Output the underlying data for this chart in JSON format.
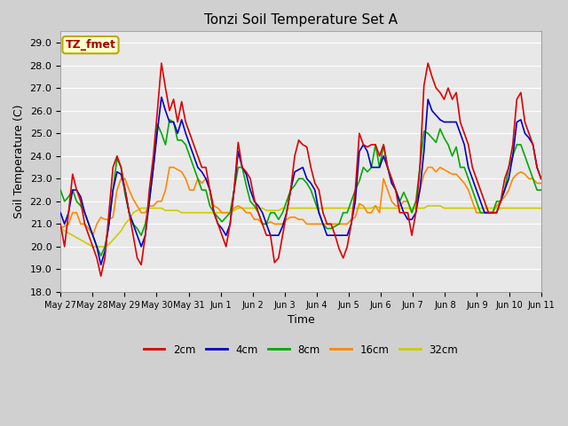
{
  "title": "Tonzi Soil Temperature Set A",
  "xlabel": "Time",
  "ylabel": "Soil Temperature (C)",
  "ylim": [
    18.0,
    29.5
  ],
  "yticks": [
    18.0,
    19.0,
    20.0,
    21.0,
    22.0,
    23.0,
    24.0,
    25.0,
    26.0,
    27.0,
    28.0,
    29.0
  ],
  "plot_bg": "#e8e8e8",
  "grid_color": "white",
  "label_box_text": "TZ_fmet",
  "label_box_bg": "#ffffcc",
  "label_box_edge": "#bbaa00",
  "label_box_text_color": "#aa0000",
  "series": {
    "2cm": {
      "color": "#dd0000",
      "lw": 1.2
    },
    "4cm": {
      "color": "#0000cc",
      "lw": 1.2
    },
    "8cm": {
      "color": "#00aa00",
      "lw": 1.2
    },
    "16cm": {
      "color": "#ff8800",
      "lw": 1.2
    },
    "32cm": {
      "color": "#cccc00",
      "lw": 1.2
    }
  },
  "x_tick_labels": [
    "May 27",
    "May 28",
    "May 29",
    "May 30",
    "May 31",
    "Jun 1",
    "Jun 2",
    "Jun 3",
    "Jun 4",
    "Jun 5",
    "Jun 6",
    "Jun 7",
    "Jun 8",
    "Jun 9",
    "Jun 10",
    "Jun 11"
  ],
  "y_2cm": [
    21.0,
    20.0,
    21.5,
    23.2,
    22.5,
    22.0,
    21.0,
    20.5,
    20.0,
    19.5,
    18.7,
    19.5,
    21.5,
    23.5,
    24.0,
    23.5,
    22.5,
    21.5,
    20.5,
    19.5,
    19.2,
    20.5,
    22.5,
    24.0,
    26.0,
    28.1,
    27.0,
    26.0,
    26.5,
    25.5,
    26.4,
    25.5,
    25.0,
    24.5,
    24.0,
    23.5,
    23.5,
    22.5,
    21.5,
    21.0,
    20.5,
    20.0,
    21.0,
    22.5,
    24.6,
    23.5,
    23.3,
    23.0,
    22.1,
    21.5,
    21.0,
    20.5,
    20.5,
    19.3,
    19.5,
    20.5,
    21.5,
    22.5,
    24.0,
    24.7,
    24.5,
    24.4,
    23.5,
    22.8,
    22.5,
    21.5,
    21.0,
    21.0,
    20.5,
    19.9,
    19.5,
    20.0,
    21.0,
    22.5,
    25.0,
    24.5,
    24.4,
    24.5,
    24.5,
    24.0,
    24.5,
    23.5,
    23.0,
    22.5,
    21.5,
    21.5,
    21.5,
    20.5,
    21.5,
    23.5,
    27.1,
    28.1,
    27.5,
    27.0,
    26.8,
    26.5,
    27.0,
    26.5,
    26.8,
    25.5,
    25.0,
    24.5,
    23.5,
    23.0,
    22.5,
    22.0,
    21.5,
    21.5,
    21.5,
    22.0,
    23.0,
    23.5,
    24.5,
    26.5,
    26.8,
    25.5,
    25.0,
    24.5,
    23.5,
    23.0
  ],
  "y_4cm": [
    21.5,
    21.0,
    21.5,
    22.5,
    22.5,
    22.2,
    21.5,
    21.0,
    20.5,
    20.0,
    19.2,
    19.8,
    21.0,
    22.5,
    23.3,
    23.2,
    22.5,
    21.5,
    21.0,
    20.5,
    20.0,
    20.5,
    22.0,
    23.5,
    25.1,
    26.6,
    26.0,
    25.5,
    25.5,
    25.0,
    25.6,
    25.0,
    24.5,
    24.0,
    23.5,
    23.3,
    23.0,
    22.5,
    21.5,
    21.0,
    20.8,
    20.5,
    21.0,
    22.5,
    24.2,
    23.5,
    23.2,
    22.5,
    22.0,
    21.8,
    21.5,
    21.0,
    20.5,
    20.5,
    20.5,
    20.9,
    21.5,
    22.5,
    23.3,
    23.4,
    23.5,
    23.0,
    22.8,
    22.5,
    21.5,
    21.0,
    20.5,
    20.5,
    20.5,
    20.5,
    20.5,
    20.5,
    21.0,
    22.0,
    24.2,
    24.5,
    24.2,
    23.5,
    23.5,
    23.5,
    24.0,
    23.5,
    22.8,
    22.5,
    22.0,
    21.5,
    21.2,
    21.2,
    21.5,
    22.5,
    24.2,
    26.5,
    26.0,
    25.8,
    25.6,
    25.5,
    25.5,
    25.5,
    25.5,
    25.0,
    24.5,
    23.5,
    23.0,
    22.5,
    22.0,
    21.5,
    21.5,
    21.5,
    21.5,
    22.0,
    22.5,
    23.0,
    24.0,
    25.5,
    25.6,
    25.0,
    24.8,
    24.5,
    23.5,
    23.0
  ],
  "y_8cm": [
    22.5,
    22.0,
    22.2,
    22.5,
    22.0,
    21.8,
    21.5,
    21.0,
    20.5,
    20.0,
    19.6,
    20.0,
    21.0,
    22.5,
    23.9,
    23.5,
    22.3,
    21.5,
    21.0,
    20.8,
    20.5,
    21.0,
    22.0,
    23.5,
    25.4,
    25.0,
    24.5,
    25.6,
    25.5,
    24.7,
    24.7,
    24.5,
    24.0,
    23.5,
    23.0,
    22.5,
    22.5,
    21.8,
    21.5,
    21.3,
    21.1,
    21.3,
    21.5,
    22.5,
    23.5,
    23.5,
    22.7,
    22.0,
    21.8,
    21.5,
    21.0,
    21.0,
    21.5,
    21.5,
    21.2,
    21.5,
    22.0,
    22.5,
    22.7,
    23.0,
    23.0,
    22.8,
    22.5,
    22.0,
    21.5,
    21.0,
    20.8,
    20.8,
    20.9,
    21.0,
    21.5,
    21.5,
    22.0,
    22.5,
    22.9,
    23.5,
    23.3,
    23.5,
    24.5,
    23.5,
    24.5,
    23.5,
    23.0,
    22.5,
    22.0,
    22.4,
    22.0,
    21.5,
    22.0,
    23.5,
    25.1,
    25.0,
    24.8,
    24.6,
    25.2,
    24.8,
    24.5,
    24.0,
    24.4,
    23.5,
    23.5,
    23.0,
    22.5,
    22.0,
    21.5,
    21.5,
    21.5,
    21.5,
    22.0,
    22.0,
    22.5,
    23.5,
    24.0,
    24.5,
    24.5,
    24.0,
    23.5,
    23.0,
    22.5,
    22.5
  ],
  "y_16cm": [
    20.8,
    20.9,
    21.0,
    21.5,
    21.5,
    21.0,
    21.0,
    20.8,
    20.5,
    21.0,
    21.3,
    21.2,
    21.2,
    21.3,
    22.5,
    23.0,
    23.0,
    22.5,
    22.1,
    21.8,
    21.5,
    21.5,
    21.8,
    21.8,
    22.0,
    22.0,
    22.5,
    23.5,
    23.5,
    23.4,
    23.3,
    23.0,
    22.5,
    22.5,
    23.0,
    22.8,
    23.0,
    22.5,
    21.8,
    21.7,
    21.5,
    21.5,
    21.5,
    21.7,
    21.8,
    21.7,
    21.5,
    21.5,
    21.2,
    21.2,
    21.0,
    21.0,
    21.1,
    21.0,
    21.0,
    21.0,
    21.2,
    21.3,
    21.3,
    21.2,
    21.2,
    21.0,
    21.0,
    21.0,
    21.0,
    21.0,
    21.0,
    21.0,
    21.0,
    21.0,
    21.0,
    21.0,
    21.2,
    21.3,
    21.9,
    21.8,
    21.5,
    21.5,
    21.8,
    21.5,
    23.0,
    22.5,
    22.0,
    21.8,
    21.8,
    22.0,
    22.0,
    21.5,
    22.0,
    22.5,
    23.2,
    23.5,
    23.5,
    23.3,
    23.5,
    23.4,
    23.3,
    23.2,
    23.2,
    23.0,
    22.8,
    22.5,
    22.0,
    21.5,
    21.5,
    21.5,
    21.5,
    21.5,
    21.8,
    22.0,
    22.2,
    22.5,
    23.0,
    23.2,
    23.3,
    23.2,
    23.0,
    23.0,
    22.8,
    22.8
  ],
  "y_32cm": [
    20.8,
    20.7,
    20.6,
    20.5,
    20.4,
    20.3,
    20.2,
    20.1,
    20.0,
    20.0,
    20.0,
    20.0,
    20.1,
    20.3,
    20.5,
    20.7,
    21.0,
    21.2,
    21.5,
    21.6,
    21.7,
    21.7,
    21.7,
    21.7,
    21.7,
    21.7,
    21.6,
    21.6,
    21.6,
    21.6,
    21.5,
    21.5,
    21.5,
    21.5,
    21.5,
    21.5,
    21.5,
    21.5,
    21.5,
    21.5,
    21.5,
    21.5,
    21.5,
    21.6,
    21.7,
    21.7,
    21.7,
    21.7,
    21.7,
    21.7,
    21.7,
    21.6,
    21.6,
    21.6,
    21.6,
    21.7,
    21.7,
    21.7,
    21.7,
    21.7,
    21.7,
    21.7,
    21.7,
    21.7,
    21.7,
    21.7,
    21.7,
    21.7,
    21.7,
    21.7,
    21.7,
    21.7,
    21.7,
    21.7,
    21.7,
    21.7,
    21.7,
    21.7,
    21.8,
    21.7,
    21.7,
    21.7,
    21.7,
    21.7,
    21.7,
    21.7,
    21.7,
    21.7,
    21.7,
    21.7,
    21.7,
    21.8,
    21.8,
    21.8,
    21.8,
    21.7,
    21.7,
    21.7,
    21.7,
    21.7,
    21.7,
    21.7,
    21.7,
    21.7,
    21.7,
    21.7,
    21.7,
    21.7,
    21.7,
    21.7,
    21.7,
    21.7,
    21.7,
    21.7,
    21.7,
    21.7,
    21.7,
    21.7,
    21.7,
    21.7
  ]
}
